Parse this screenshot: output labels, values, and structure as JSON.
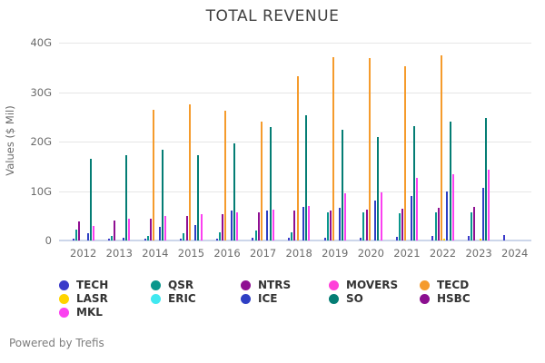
{
  "header": {
    "title": "TOTAL REVENUE"
  },
  "footer": {
    "credit": "Powered by Trefis"
  },
  "chart_data": {
    "type": "bar",
    "title": "TOTAL REVENUE",
    "ylabel": "Values ($ Mil)",
    "ylim": [
      0,
      40
    ],
    "grid": true,
    "legend_position": "bottom-left",
    "yticks": [
      {
        "label": "40G",
        "value": 40
      },
      {
        "label": "30G",
        "value": 30
      },
      {
        "label": "20G",
        "value": 20
      },
      {
        "label": "10G",
        "value": 10
      },
      {
        "label": "0",
        "value": 0
      }
    ],
    "categories": [
      "2012",
      "2013",
      "2014",
      "2015",
      "2016",
      "2017",
      "2018",
      "2019",
      "2020",
      "2021",
      "2022",
      "2023",
      "2024"
    ],
    "series": [
      {
        "name": "TECH",
        "color": "#3a3ac9",
        "values": [
          0.4,
          0.4,
          0.4,
          0.4,
          0.4,
          0.5,
          0.5,
          0.5,
          0.6,
          0.8,
          0.9,
          1.0,
          1.1
        ]
      },
      {
        "name": "QSR",
        "color": "#0a968c",
        "values": [
          2.2,
          1.0,
          1.0,
          1.5,
          1.6,
          2.0,
          1.7,
          5.7,
          5.6,
          5.5,
          5.7,
          5.7,
          0
        ]
      },
      {
        "name": "NTRS",
        "color": "#8f0f92",
        "values": [
          3.9,
          4.1,
          4.4,
          4.9,
          5.3,
          5.6,
          6.0,
          6.0,
          6.2,
          6.4,
          6.6,
          6.8,
          0
        ]
      },
      {
        "name": "MOVERS",
        "color": "#ff40d9",
        "values": [
          0,
          0,
          0,
          0,
          0,
          0,
          0,
          0,
          0,
          0,
          0,
          0,
          0
        ]
      },
      {
        "name": "TECD",
        "color": "#f59b2c",
        "values": [
          0,
          0,
          26.5,
          27.5,
          26.2,
          24.0,
          33.3,
          37.0,
          36.8,
          35.2,
          37.5,
          0,
          0
        ]
      },
      {
        "name": "LASR",
        "color": "#ffd400",
        "values": [
          0,
          0,
          0,
          0,
          0,
          0,
          0,
          0,
          0,
          0,
          0.4,
          0.3,
          0
        ]
      },
      {
        "name": "ERIC",
        "color": "#40e8f0",
        "values": [
          0,
          0,
          0,
          0,
          0,
          0,
          0,
          0,
          0,
          0,
          0,
          0,
          0
        ]
      },
      {
        "name": "ICE",
        "color": "#2e3fc4",
        "values": [
          1.5,
          0.5,
          2.8,
          3.2,
          6.1,
          6.1,
          6.8,
          6.6,
          8.0,
          9.0,
          9.9,
          10.7,
          0
        ]
      },
      {
        "name": "SO",
        "color": "#047d74",
        "values": [
          16.5,
          17.2,
          18.4,
          17.3,
          19.7,
          22.9,
          25.3,
          22.4,
          20.9,
          23.2,
          24.0,
          24.8,
          0
        ]
      },
      {
        "name": "HSBC",
        "color": "#8b0f8f",
        "values": [
          0,
          0,
          0,
          0,
          0,
          0,
          0,
          0,
          0,
          0,
          0,
          0,
          0
        ]
      },
      {
        "name": "MKL",
        "color": "#fb41f0",
        "values": [
          2.9,
          4.4,
          4.9,
          5.3,
          5.6,
          6.2,
          7.0,
          9.5,
          9.8,
          12.7,
          13.4,
          14.3,
          0
        ]
      }
    ],
    "legend_rows": [
      [
        "TECH",
        "QSR",
        "NTRS",
        "MOVERS",
        "TECD"
      ],
      [
        "LASR",
        "ERIC",
        "ICE",
        "SO",
        "HSBC"
      ],
      [
        "MKL"
      ]
    ]
  }
}
